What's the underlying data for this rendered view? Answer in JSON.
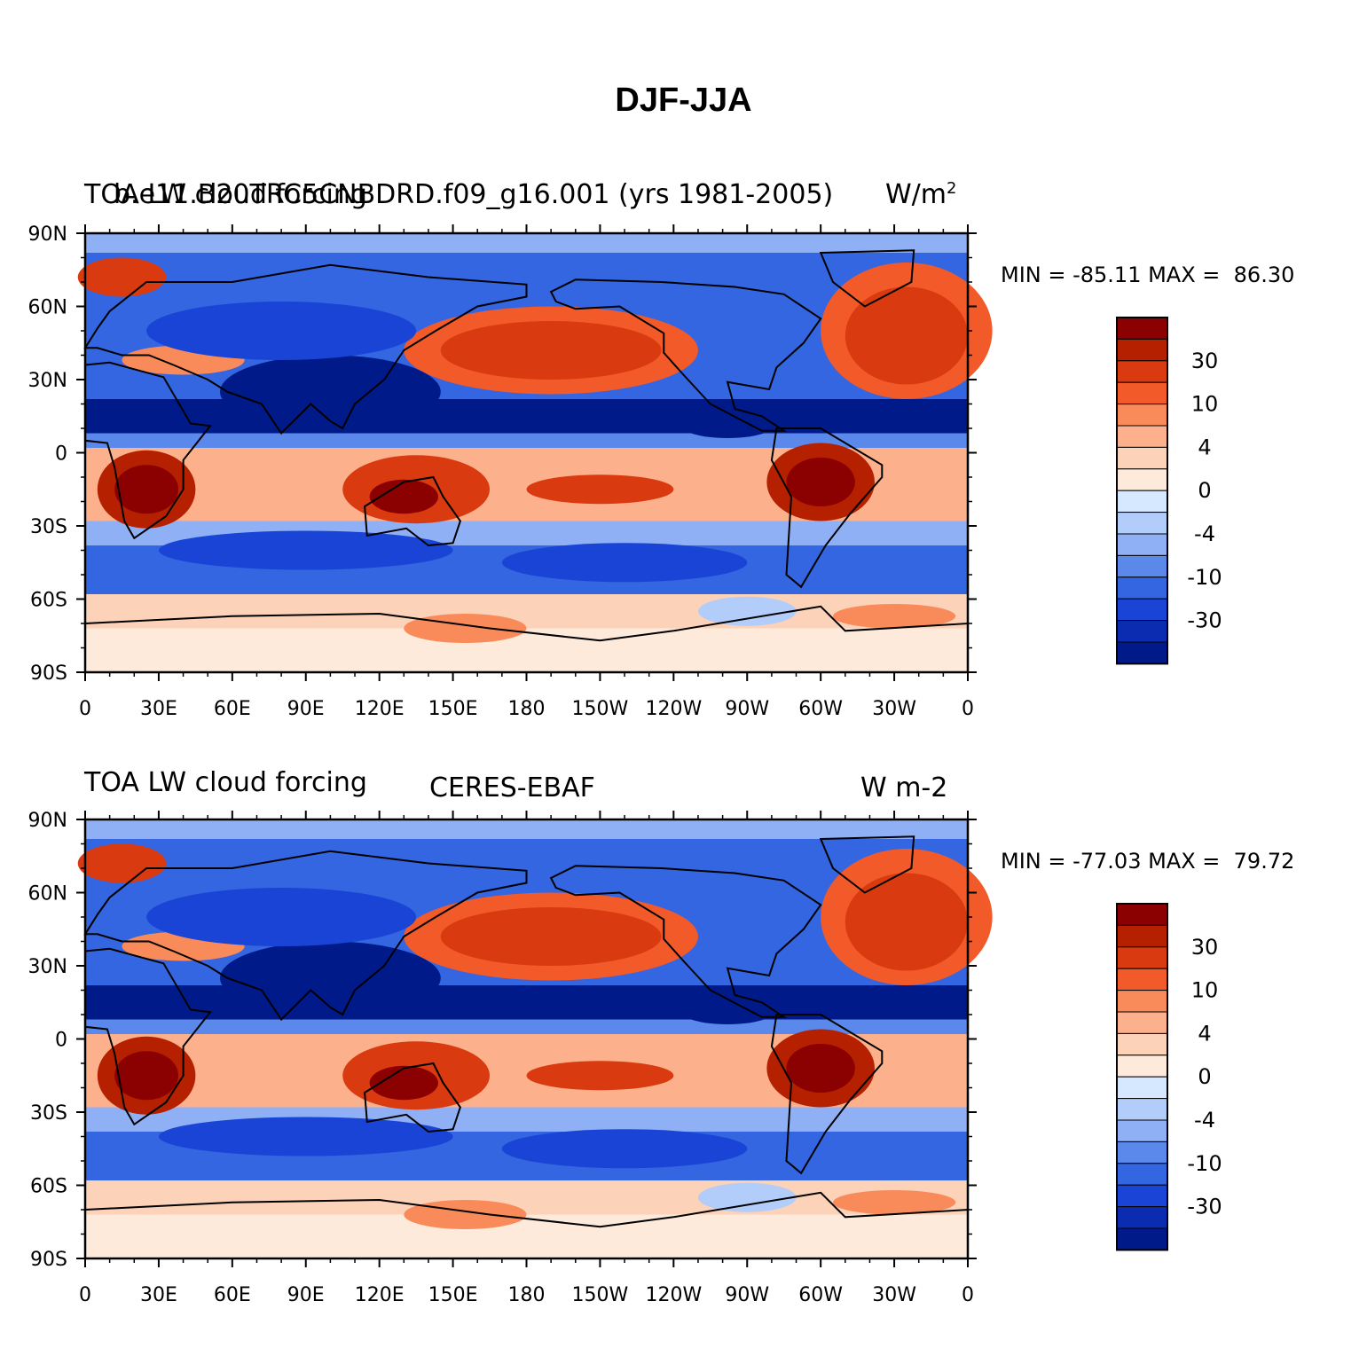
{
  "title": "DJF-JJA",
  "lat_labels": [
    "90N",
    "60N",
    "30N",
    "0",
    "30S",
    "60S",
    "90S"
  ],
  "lon_labels": [
    "0",
    "30E",
    "60E",
    "90E",
    "120E",
    "150E",
    "180",
    "150W",
    "120W",
    "90W",
    "60W",
    "30W",
    "0"
  ],
  "colorbar": {
    "labels": [
      "30",
      "10",
      "4",
      "0",
      "-4",
      "-10",
      "-30"
    ],
    "colors": [
      "#8b0000",
      "#b52000",
      "#d93a10",
      "#f25a2a",
      "#f98a5a",
      "#fcb08c",
      "#fcd2b8",
      "#fdeadb",
      "#d6e8ff",
      "#b2cdfa",
      "#8fb0f5",
      "#5a88eb",
      "#3366e0",
      "#1a44d6",
      "#0b2cb0",
      "#001a8a"
    ]
  },
  "panels": [
    {
      "left_title_a": "TOA LW cloud forcing",
      "left_title_b": "b.e11.B20TRC5CNBDRD.f09_g16.001 (yrs 1981-2005)",
      "right_title": "W/m",
      "right_title_sup": "2",
      "min_label": "MIN = -85.11 MAX =  86.30"
    },
    {
      "left_title_a": "TOA LW cloud forcing",
      "center_title": "CERES-EBAF",
      "right_title": "W m-2",
      "min_label": "MIN = -77.03 MAX =  79.72"
    }
  ],
  "field_bands": [
    {
      "lat": [
        90,
        80
      ],
      "class": "light-blue"
    },
    {
      "lat": [
        80,
        60
      ],
      "class": "mid-blue"
    },
    {
      "lat": [
        60,
        25
      ],
      "class": "blue / orange oceans"
    },
    {
      "lat": [
        25,
        5
      ],
      "class": "dark blue"
    },
    {
      "lat": [
        5,
        -30
      ],
      "class": "red / dark red"
    },
    {
      "lat": [
        -30,
        -60
      ],
      "class": "blue"
    },
    {
      "lat": [
        -60,
        -90
      ],
      "class": "light orange"
    }
  ]
}
